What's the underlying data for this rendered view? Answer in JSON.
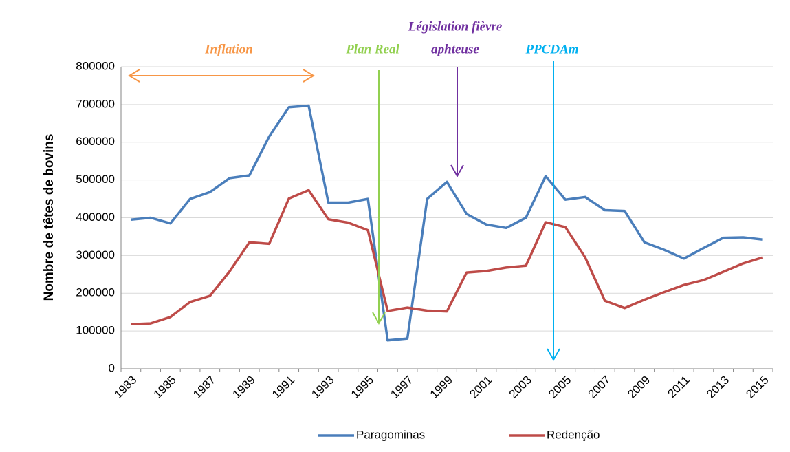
{
  "chart_data": {
    "type": "line",
    "y_label": "Nombre de têtes de bovins",
    "categories": [
      "1983",
      null,
      "1985",
      null,
      "1987",
      null,
      "1989",
      null,
      "1991",
      null,
      "1993",
      null,
      "1995",
      null,
      "1997",
      null,
      "1999",
      null,
      "2001",
      null,
      "2003",
      null,
      "2005",
      null,
      "2007",
      null,
      "2009",
      null,
      "2011",
      null,
      "2013",
      null,
      "2015"
    ],
    "series": [
      {
        "name": "Paragominas",
        "color": "#4a7ebb",
        "values": [
          395000,
          400000,
          385000,
          450000,
          468000,
          505000,
          512000,
          615000,
          693000,
          697000,
          440000,
          440000,
          450000,
          75000,
          80000,
          450000,
          495000,
          410000,
          382000,
          373000,
          400000,
          510000,
          448000,
          455000,
          420000,
          418000,
          335000,
          315000,
          292000,
          320000,
          347000,
          348000,
          342000
        ]
      },
      {
        "name": "Redenção",
        "color": "#be4b48",
        "values": [
          118000,
          120000,
          137000,
          177000,
          193000,
          258000,
          335000,
          331000,
          451000,
          473000,
          396000,
          387000,
          367000,
          153000,
          162000,
          154000,
          152000,
          255000,
          259000,
          268000,
          273000,
          388000,
          375000,
          295000,
          180000,
          161000,
          183000,
          203000,
          222000,
          235000,
          257000,
          279000,
          295000
        ]
      }
    ],
    "ylim": [
      0,
      800000
    ],
    "yticks": [
      0,
      100000,
      200000,
      300000,
      400000,
      500000,
      600000,
      700000,
      800000
    ],
    "grid": true,
    "legend": "bottom",
    "annotations": [
      {
        "lines": [
          "Inflation"
        ],
        "color": "#f79646"
      },
      {
        "lines": [
          "Plan Real"
        ],
        "color": "#92d050"
      },
      {
        "lines": [
          "Législation fièvre",
          "aphteuse"
        ],
        "color": "#7030a0"
      },
      {
        "lines": [
          "PPCDAm"
        ],
        "color": "#00b0f0"
      }
    ]
  }
}
